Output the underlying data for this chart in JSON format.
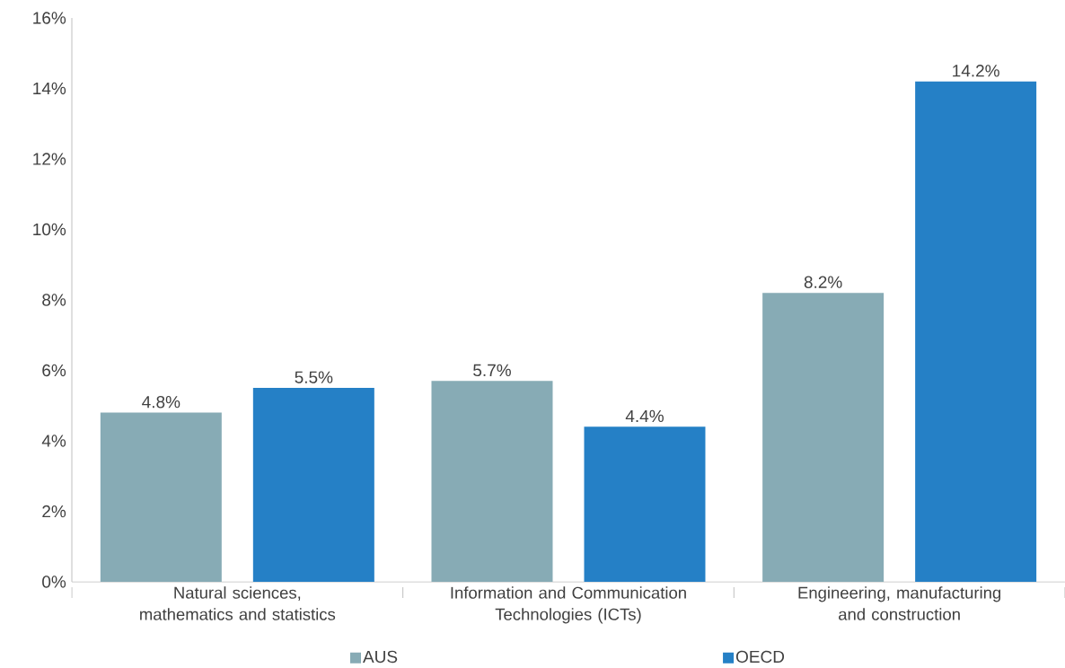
{
  "chart_data": {
    "type": "bar",
    "categories": [
      "Natural sciences, mathematics and statistics",
      "Information and Communication Technologies (ICTs)",
      "Engineering, manufacturing and construction"
    ],
    "series": [
      {
        "name": "AUS",
        "color": "#87abb5",
        "values": [
          4.8,
          5.7,
          8.2
        ],
        "value_labels": [
          "4.8%",
          "5.7%",
          "8.2%"
        ]
      },
      {
        "name": "OECD",
        "color": "#2580c6",
        "values": [
          5.5,
          4.4,
          14.2
        ],
        "value_labels": [
          "5.5%",
          "4.4%",
          "14.2%"
        ]
      }
    ],
    "ylim": [
      0,
      16
    ],
    "yticks": [
      {
        "value": 0,
        "label": "0%"
      },
      {
        "value": 2,
        "label": "2%"
      },
      {
        "value": 4,
        "label": "4%"
      },
      {
        "value": 6,
        "label": "6%"
      },
      {
        "value": 8,
        "label": "8%"
      },
      {
        "value": 10,
        "label": "10%"
      },
      {
        "value": 12,
        "label": "12%"
      },
      {
        "value": 14,
        "label": "14%"
      },
      {
        "value": 16,
        "label": "16%"
      }
    ],
    "grid": false,
    "legend": "bottom"
  }
}
